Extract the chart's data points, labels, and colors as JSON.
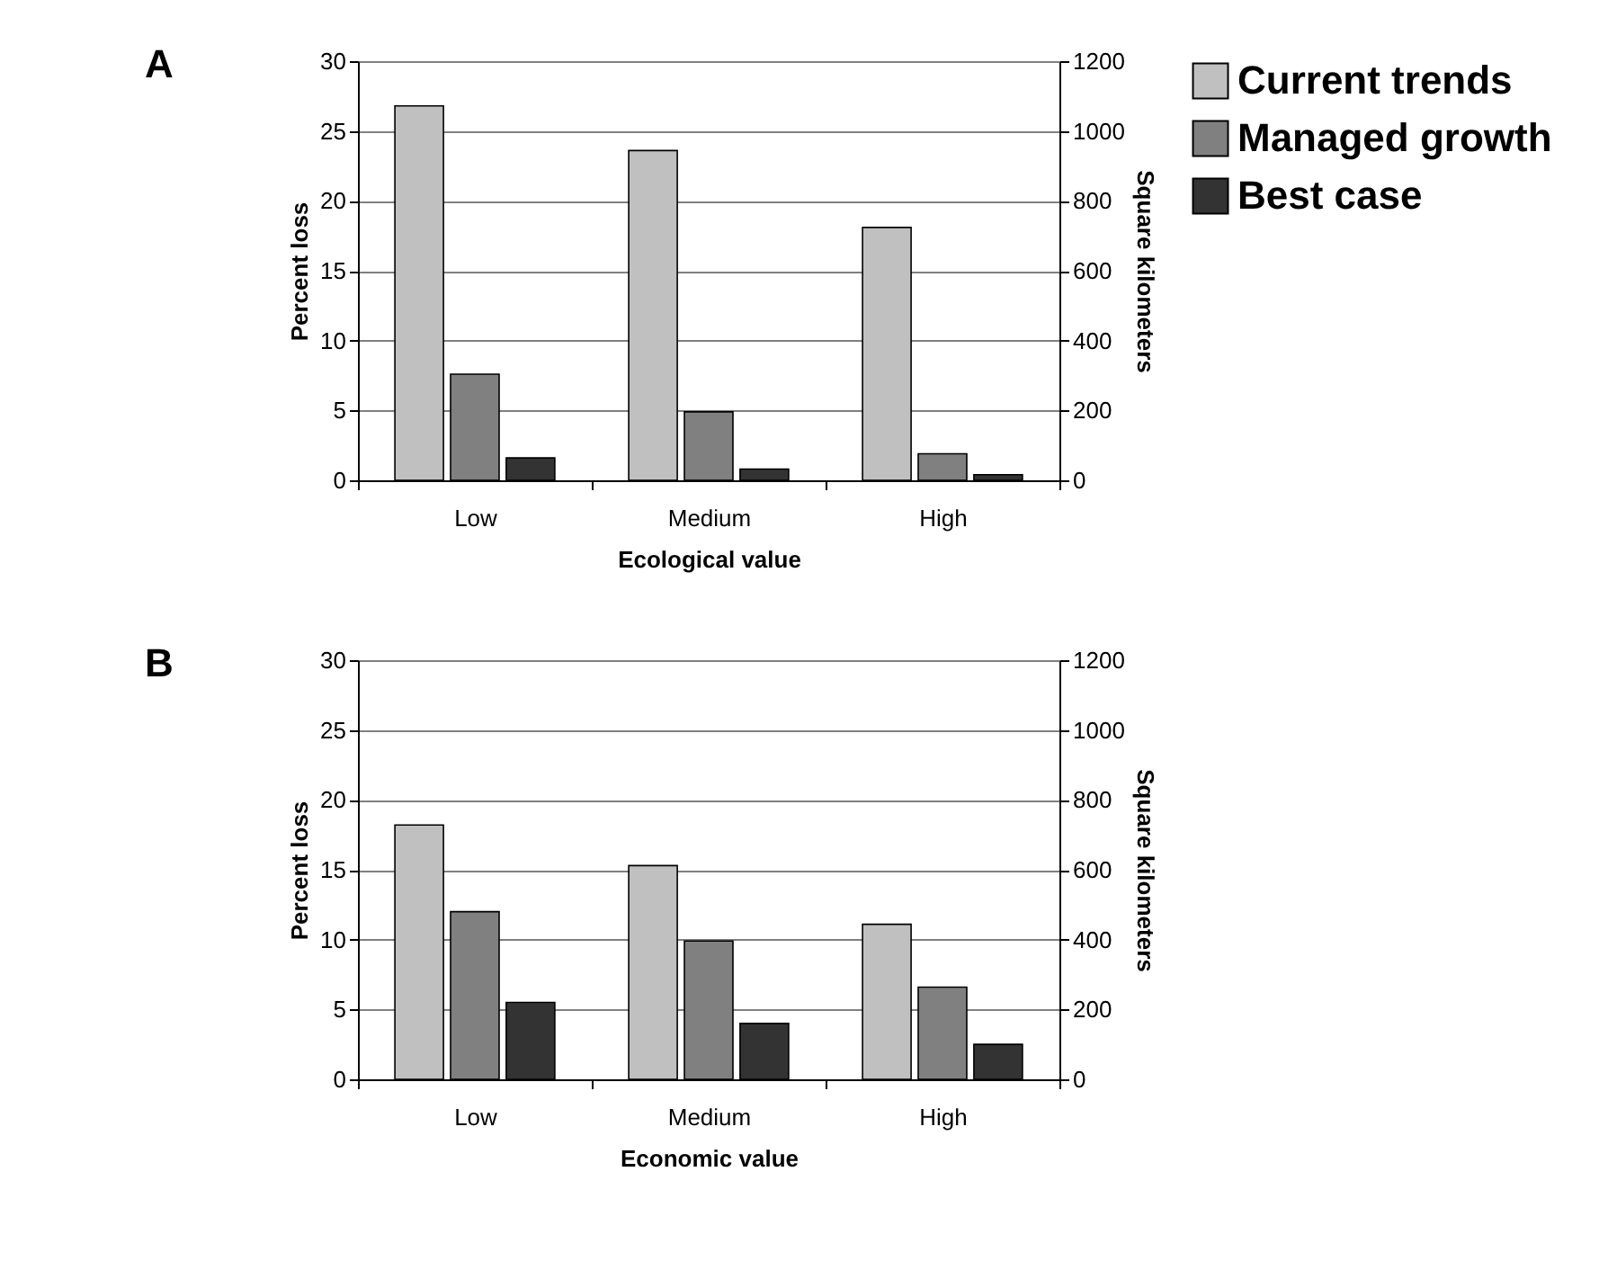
{
  "chart_data": [
    {
      "type": "bar",
      "title": "A",
      "xlabel": "Ecological value",
      "ylabel": "Percent loss",
      "y2label": "Square kilometers",
      "categories": [
        "Low",
        "Medium",
        "High"
      ],
      "ylim": [
        0,
        30
      ],
      "yticks": [
        0,
        5,
        10,
        15,
        20,
        25,
        30
      ],
      "y2lim": [
        0,
        1200
      ],
      "y2ticks": [
        0,
        200,
        400,
        600,
        800,
        1000,
        1200
      ],
      "grid": "y",
      "legend": "right",
      "series": [
        {
          "name": "Current trends",
          "color": "#c0c0c0",
          "values": [
            26.8,
            23.6,
            18.1
          ]
        },
        {
          "name": "Managed growth",
          "color": "#808080",
          "values": [
            7.6,
            4.9,
            1.9
          ]
        },
        {
          "name": "Best case",
          "color": "#333333",
          "values": [
            1.6,
            0.8,
            0.4
          ]
        }
      ]
    },
    {
      "type": "bar",
      "title": "B",
      "xlabel": "Economic value",
      "ylabel": "Percent loss",
      "y2label": "Square kilometers",
      "categories": [
        "Low",
        "Medium",
        "High"
      ],
      "ylim": [
        0,
        30
      ],
      "yticks": [
        0,
        5,
        10,
        15,
        20,
        25,
        30
      ],
      "y2lim": [
        0,
        1200
      ],
      "y2ticks": [
        0,
        200,
        400,
        600,
        800,
        1000,
        1200
      ],
      "grid": "y",
      "series": [
        {
          "color": "#c0c0c0",
          "values": [
            18.2,
            15.3,
            11.1
          ]
        },
        {
          "color": "#808080",
          "values": [
            12.0,
            9.9,
            6.6
          ]
        },
        {
          "color": "#333333",
          "values": [
            5.5,
            4.0,
            2.5
          ]
        }
      ]
    }
  ]
}
